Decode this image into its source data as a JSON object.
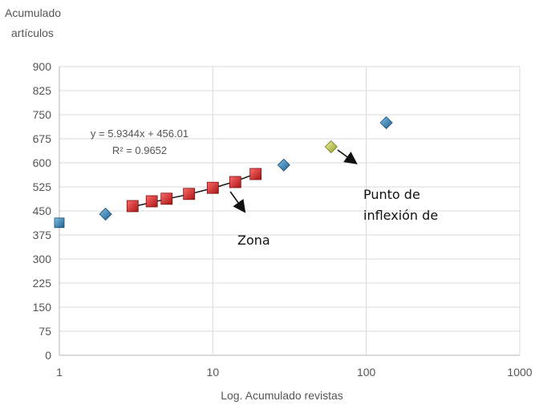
{
  "chart_data": {
    "type": "scatter",
    "ylabel_lines": [
      "Acumulado",
      "artículos"
    ],
    "xlabel": "Log. Acumulado revistas",
    "x_scale": "log",
    "xlim": [
      1,
      1000
    ],
    "ylim": [
      0,
      900
    ],
    "x_ticks": [
      "1",
      "10",
      "100",
      "1000"
    ],
    "y_ticks": [
      "0",
      "75",
      "150",
      "225",
      "300",
      "375",
      "450",
      "525",
      "600",
      "675",
      "750",
      "825",
      "900"
    ],
    "grid": true,
    "series": [
      {
        "marker": "diamond",
        "color": "#2f7fb3",
        "points": [
          [
            1,
            413
          ],
          [
            2,
            440
          ],
          [
            29,
            593
          ],
          [
            135,
            725
          ]
        ]
      },
      {
        "marker": "square",
        "color": "#d82a2a",
        "points": [
          [
            3,
            465
          ],
          [
            4,
            480
          ],
          [
            5,
            488
          ],
          [
            7,
            503
          ],
          [
            10,
            522
          ],
          [
            14,
            540
          ],
          [
            19,
            565
          ]
        ]
      },
      {
        "marker": "diamond",
        "color": "#b8c84a",
        "points": [
          [
            59,
            650
          ]
        ]
      }
    ],
    "trendline": {
      "equation": "y = 5.9344x + 456.01",
      "r2": "R² = 0.9652",
      "points": [
        [
          3,
          463
        ],
        [
          5,
          487
        ],
        [
          7,
          502
        ],
        [
          10,
          521
        ],
        [
          14,
          542
        ],
        [
          19,
          566
        ]
      ]
    },
    "annotations": [
      {
        "text": "Zona",
        "arrow_from": [
          13,
          510
        ],
        "arrow_to": [
          16,
          450
        ]
      },
      {
        "text": "Punto de inflexión de",
        "arrow_from": [
          65,
          640
        ],
        "arrow_to": [
          85,
          600
        ]
      }
    ]
  }
}
